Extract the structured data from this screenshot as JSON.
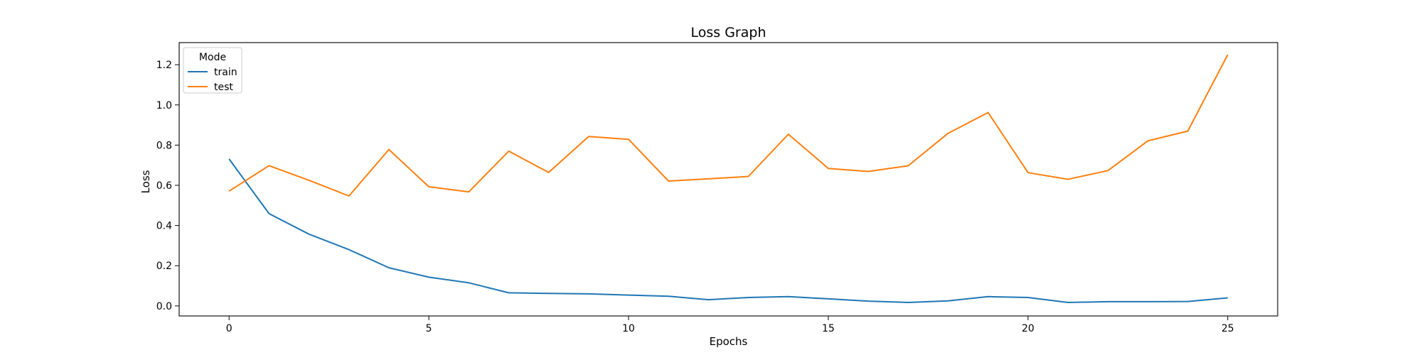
{
  "chart_data": {
    "type": "line",
    "title": "Loss Graph",
    "xlabel": "Epochs",
    "ylabel": "Loss",
    "xlim": [
      -1.25,
      26.25
    ],
    "ylim": [
      -0.05,
      1.31
    ],
    "xticks": [
      0,
      5,
      10,
      15,
      20,
      25
    ],
    "xtick_labels": [
      "0",
      "5",
      "10",
      "15",
      "20",
      "25"
    ],
    "yticks": [
      0.0,
      0.2,
      0.4,
      0.6,
      0.8,
      1.0,
      1.2
    ],
    "ytick_labels": [
      "0.0",
      "0.2",
      "0.4",
      "0.6",
      "0.8",
      "1.0",
      "1.2"
    ],
    "grid": false,
    "legend": {
      "title": "Mode",
      "position": "top-left"
    },
    "x": [
      0,
      1,
      2,
      3,
      4,
      5,
      6,
      7,
      8,
      9,
      10,
      11,
      12,
      13,
      14,
      15,
      16,
      17,
      18,
      19,
      20,
      21,
      22,
      23,
      24,
      25
    ],
    "series": [
      {
        "name": "train",
        "color": "#1f77b4",
        "values": [
          0.731,
          0.459,
          0.357,
          0.28,
          0.19,
          0.143,
          0.115,
          0.065,
          0.062,
          0.06,
          0.054,
          0.048,
          0.031,
          0.042,
          0.046,
          0.035,
          0.024,
          0.017,
          0.025,
          0.046,
          0.042,
          0.017,
          0.021,
          0.021,
          0.022,
          0.04
        ]
      },
      {
        "name": "test",
        "color": "#ff7f0e",
        "values": [
          0.571,
          0.698,
          0.625,
          0.547,
          0.778,
          0.593,
          0.567,
          0.77,
          0.664,
          0.843,
          0.829,
          0.621,
          0.632,
          0.644,
          0.854,
          0.684,
          0.669,
          0.697,
          0.859,
          0.962,
          0.663,
          0.63,
          0.673,
          0.821,
          0.87,
          1.25
        ]
      }
    ]
  }
}
